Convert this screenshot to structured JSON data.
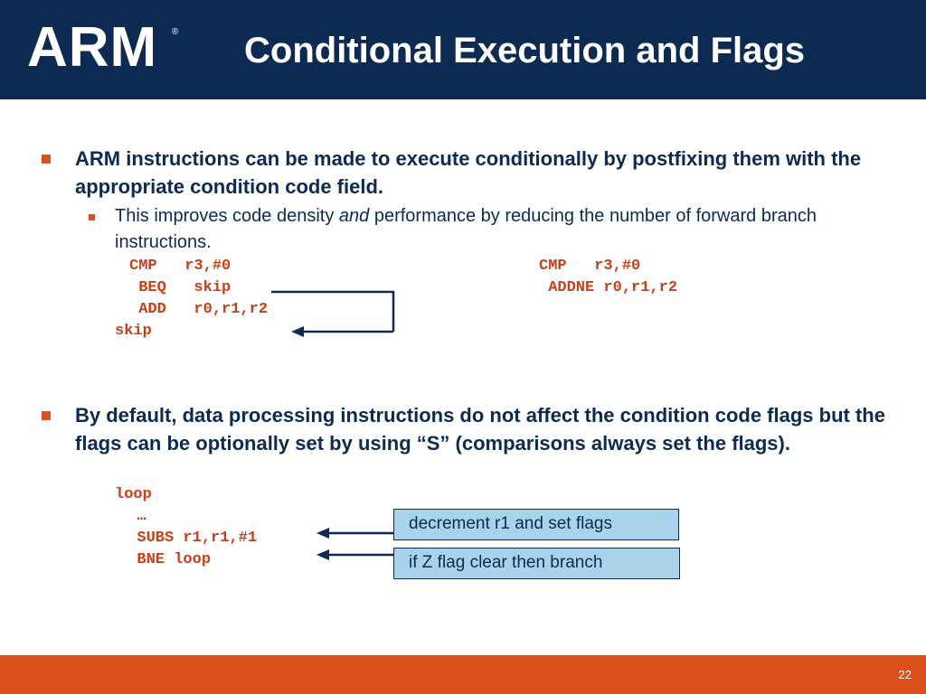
{
  "header": {
    "logo": "ARM",
    "logo_mark": "®",
    "title": "Conditional Execution and Flags"
  },
  "bullet1": {
    "text": "ARM instructions can be made to execute conditionally by postfixing them with the appropriate condition code field.",
    "sub_before": "This improves code density ",
    "sub_italic": "and",
    "sub_after": " performance by reducing the number of forward branch instructions."
  },
  "code_left": [
    "CMP   r3,#0",
    " BEQ   skip",
    " ADD   r0,r1,r2",
    "skip"
  ],
  "code_right": [
    "CMP   r3,#0",
    " ADDNE r0,r1,r2"
  ],
  "bullet2": {
    "text": "By default, data processing instructions do not affect the condition code flags but the flags can be optionally set by using “S” (comparisons always set the flags)."
  },
  "code_loop": [
    "loop",
    "  …",
    "  SUBS r1,r1,#1",
    "  BNE loop"
  ],
  "callouts": {
    "decrement": "decrement r1 and set flags",
    "branch": "if Z flag clear then branch"
  },
  "footer": {
    "page_number": "22"
  },
  "colors": {
    "header_bg": "#0c2a52",
    "footer_bg": "#d9501c",
    "code": "#c8401a",
    "callout_bg": "#a9d3ea"
  }
}
